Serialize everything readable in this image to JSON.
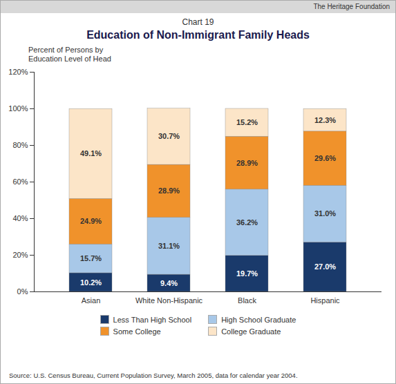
{
  "chart_data": {
    "type": "bar",
    "stacked": true,
    "title": "Education of Non-Immigrant Family Heads",
    "subtitle": "Chart 19",
    "ylabel": "Percent of Persons by\nEducation Level of Head",
    "source": "Source: U.S. Census Bureau, Current Population Survey, March 2005, data for calendar year 2004.",
    "annotations": [
      "The Heritage Foundation"
    ],
    "categories": [
      "Asian",
      "White Non-Hispanic",
      "Black",
      "Hispanic"
    ],
    "series": [
      {
        "name": "Less Than High School",
        "color": "#1a3a6b",
        "values": [
          10.2,
          9.4,
          19.7,
          27.0
        ],
        "value_labels": [
          "10.2%",
          "9.4%",
          "19.7%",
          "27.0%"
        ]
      },
      {
        "name": "High School Graduate",
        "color": "#a8c8e8",
        "values": [
          15.7,
          31.1,
          36.2,
          31.0
        ],
        "value_labels": [
          "15.7%",
          "31.1%",
          "36.2%",
          "31.0%"
        ]
      },
      {
        "name": "Some College",
        "color": "#f0922b",
        "values": [
          24.9,
          28.9,
          28.9,
          29.6
        ],
        "value_labels": [
          "24.9%",
          "28.9%",
          "28.9%",
          "29.6%"
        ]
      },
      {
        "name": "College Graduate",
        "color": "#fce5c8",
        "values": [
          49.1,
          30.7,
          15.2,
          12.3
        ],
        "value_labels": [
          "49.1%",
          "30.7%",
          "15.2%",
          "12.3%"
        ]
      }
    ],
    "ylim": [
      0,
      120
    ],
    "yticks": [
      {
        "value": 0,
        "label": "0%"
      },
      {
        "value": 20,
        "label": "20%"
      },
      {
        "value": 40,
        "label": "40%"
      },
      {
        "value": 60,
        "label": "60%"
      },
      {
        "value": 80,
        "label": "80%"
      },
      {
        "value": 100,
        "label": "100%"
      },
      {
        "value": 120,
        "label": "120%"
      }
    ],
    "grid": false,
    "legend": "bottom",
    "data_labels": true
  }
}
